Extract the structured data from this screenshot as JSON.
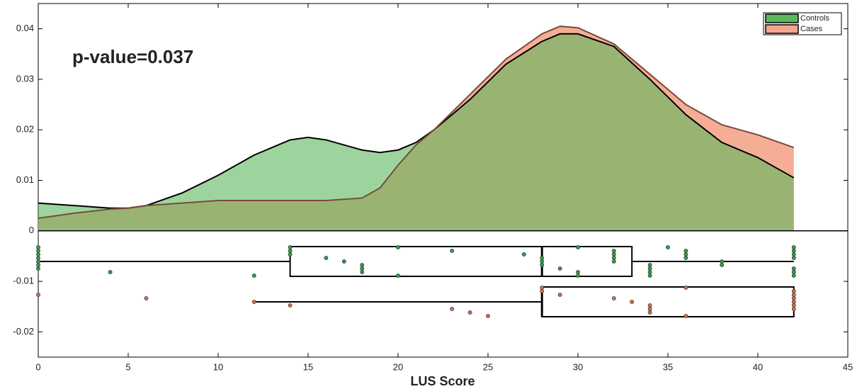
{
  "chart_data": {
    "type": "density",
    "annotation": "p-value=0.037",
    "xlabel": "LUS Score",
    "xlim": [
      0,
      45
    ],
    "ylim": [
      -0.025,
      0.045
    ],
    "xticks": [
      0,
      5,
      10,
      15,
      20,
      25,
      30,
      35,
      40,
      45
    ],
    "yticks": [
      -0.02,
      -0.01,
      0,
      0.01,
      0.02,
      0.03,
      0.04
    ],
    "legend": "upper right",
    "series": [
      {
        "name": "Controls",
        "color": "#5cb85c",
        "x": [
          0,
          2,
          4,
          5,
          6,
          8,
          10,
          12,
          14,
          15,
          16,
          18,
          19,
          20,
          21,
          22,
          24,
          26,
          28,
          29,
          30,
          32,
          34,
          36,
          38,
          40,
          42
        ],
        "values": [
          0.0055,
          0.005,
          0.0045,
          0.0045,
          0.005,
          0.0075,
          0.011,
          0.015,
          0.018,
          0.0185,
          0.018,
          0.016,
          0.0155,
          0.016,
          0.0175,
          0.02,
          0.026,
          0.033,
          0.0375,
          0.039,
          0.039,
          0.0365,
          0.03,
          0.023,
          0.0175,
          0.0145,
          0.0105
        ],
        "box": {
          "min": 0,
          "q1": 14,
          "median": 28,
          "q3": 33,
          "max": 42
        },
        "points": [
          0,
          0,
          0,
          0,
          0,
          0,
          0,
          4,
          12,
          14,
          14,
          14,
          16,
          17,
          18,
          18,
          18,
          20,
          20,
          23,
          27,
          28,
          28,
          28,
          29,
          30,
          30,
          30,
          32,
          32,
          32,
          32,
          34,
          34,
          34,
          34,
          35,
          36,
          36,
          36,
          38,
          38,
          42,
          42,
          42,
          42,
          42,
          42,
          42
        ]
      },
      {
        "name": "Cases",
        "color": "#f4a58a",
        "x": [
          0,
          2,
          4,
          5,
          6,
          8,
          10,
          12,
          14,
          15,
          16,
          18,
          19,
          20,
          21,
          22,
          24,
          26,
          28,
          29,
          30,
          32,
          34,
          36,
          38,
          40,
          42
        ],
        "values": [
          0.0025,
          0.0035,
          0.0043,
          0.0045,
          0.005,
          0.0055,
          0.006,
          0.006,
          0.006,
          0.006,
          0.006,
          0.0065,
          0.0085,
          0.013,
          0.017,
          0.02,
          0.027,
          0.034,
          0.039,
          0.0405,
          0.0402,
          0.037,
          0.031,
          0.025,
          0.021,
          0.019,
          0.0165
        ],
        "box": {
          "min": 12,
          "q1": 28,
          "median": 28,
          "q3": 42,
          "max": 42
        },
        "points": [
          0,
          6,
          12,
          14,
          23,
          24,
          25,
          28,
          28,
          29,
          32,
          33,
          34,
          34,
          34,
          36,
          36,
          42,
          42,
          42,
          42,
          42,
          42
        ]
      }
    ]
  }
}
